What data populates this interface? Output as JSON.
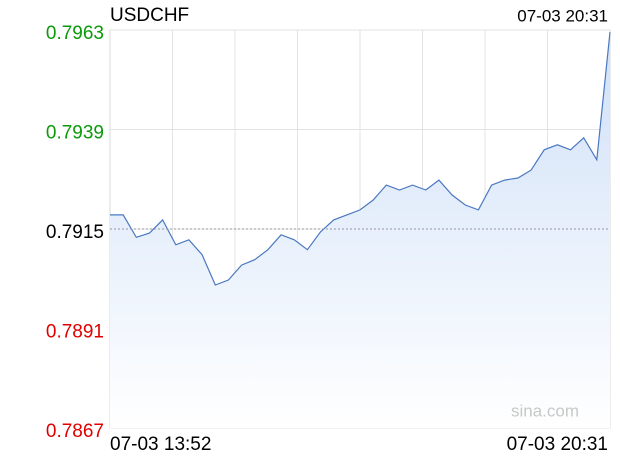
{
  "chart_data": {
    "type": "line",
    "title": "USDCHF",
    "time": "07-03 20:31",
    "watermark": "sina.com",
    "categories": [
      "07-03 13:52",
      null,
      null,
      null,
      null,
      null,
      null,
      null,
      null,
      null,
      null,
      null,
      null,
      null,
      null,
      null,
      null,
      null,
      null,
      null,
      null,
      null,
      null,
      null,
      null,
      null,
      null,
      null,
      null,
      null,
      null,
      null,
      null,
      null,
      null,
      null,
      null,
      null,
      "07-03 20:31"
    ],
    "series": [
      {
        "name": "USDCHF",
        "color": "#4a78c2",
        "values": [
          0.79184,
          0.79184,
          0.7913,
          0.7914,
          0.79172,
          0.79112,
          0.79124,
          0.79088,
          0.79015,
          0.79027,
          0.79063,
          0.79076,
          0.791,
          0.79136,
          0.79124,
          0.791,
          0.79143,
          0.79172,
          0.79184,
          0.79196,
          0.7922,
          0.79256,
          0.79244,
          0.79256,
          0.79244,
          0.79268,
          0.79232,
          0.79208,
          0.79196,
          0.79256,
          0.79268,
          0.79273,
          0.79292,
          0.79341,
          0.79353,
          0.79341,
          0.7937,
          0.79317,
          0.79625
        ]
      }
    ],
    "prev_close": 0.7915,
    "up_color": "#0a9a0a",
    "down_color": "#e00000",
    "flat_color": "#000000",
    "ylim": [
      0.7867,
      0.7963
    ],
    "yticks": [
      {
        "value": 0.7867,
        "label": "0.7867"
      },
      {
        "value": 0.7891,
        "label": "0.7891"
      },
      {
        "value": 0.7915,
        "label": "0.7915"
      },
      {
        "value": 0.7939,
        "label": "0.7939"
      },
      {
        "value": 0.7963,
        "label": "0.7963"
      }
    ],
    "grid": true
  }
}
